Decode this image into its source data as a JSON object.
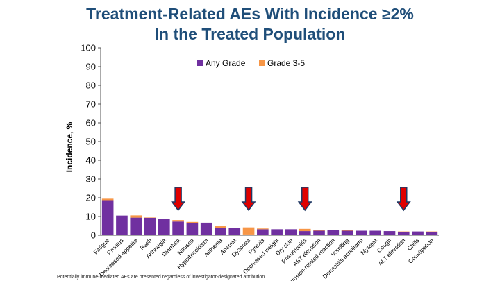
{
  "title_line1": "Treatment-Related AEs With Incidence ≥2%",
  "title_line2": "In the Treated Population",
  "footnote": "Potentially immune-mediated AEs are presented regardless of investigator-designated attribution.",
  "colors": {
    "title": "#1f4e79",
    "any_grade": "#7030a0",
    "grade_3_5": "#f79646",
    "arrow_fill": "#e00000",
    "arrow_stroke": "#1f3864"
  },
  "chart_data": {
    "type": "bar",
    "stacked": true,
    "ylabel": "Incidence, %",
    "xlabel": "",
    "ylim": [
      0,
      100
    ],
    "yticks": [
      0,
      10,
      20,
      30,
      40,
      50,
      60,
      70,
      80,
      90,
      100
    ],
    "legend_position": "top-center",
    "categories": [
      "Fatigue",
      "Pruritus",
      "Decreased appetite",
      "Rash",
      "Arthralgia",
      "Diarrhea",
      "Nausea",
      "Hypothyroidism",
      "Asthenia",
      "Anemia",
      "Dyspnea",
      "Pyrexia",
      "Decreased weight",
      "Dry skin",
      "Pneumonitis",
      "AST elevation",
      "Infusion-related reaction",
      "Vomiting",
      "Dermatitis acneiform",
      "Myalgia",
      "Cough",
      "ALT elevation",
      "Chills",
      "Constipation"
    ],
    "series": [
      {
        "name": "Any Grade",
        "color": "#7030a0",
        "values": [
          18.7,
          10.5,
          9.4,
          9.3,
          8.7,
          7.3,
          6.5,
          6.7,
          4.0,
          3.8,
          0.4,
          3.2,
          3.2,
          3.2,
          2.2,
          2.4,
          2.8,
          2.4,
          2.4,
          2.4,
          2.2,
          1.6,
          2.0,
          1.6
        ]
      },
      {
        "name": "Grade 3-5",
        "color": "#f79646",
        "values": [
          0.8,
          0.0,
          1.2,
          0.2,
          0.0,
          0.8,
          0.6,
          0.0,
          0.8,
          0.0,
          3.8,
          0.4,
          0.0,
          0.0,
          1.2,
          0.4,
          0.0,
          0.4,
          0.0,
          0.0,
          0.0,
          0.4,
          0.0,
          0.4
        ]
      }
    ],
    "highlighted_categories": [
      "Diarrhea",
      "Dyspnea",
      "Pneumonitis",
      "ALT elevation"
    ]
  }
}
